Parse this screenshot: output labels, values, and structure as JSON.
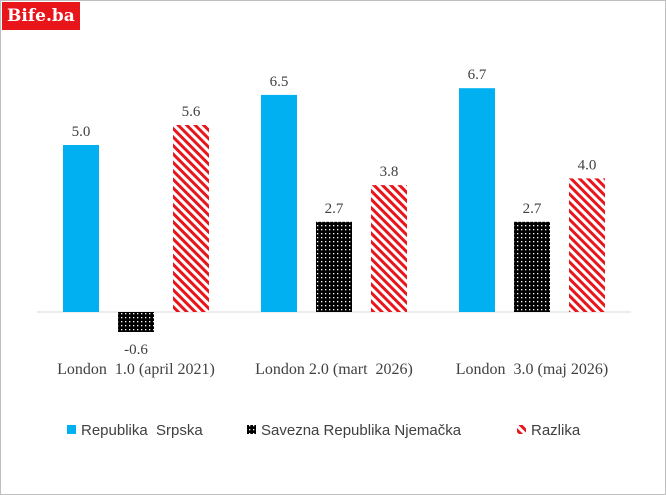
{
  "watermark": "Bife.ba",
  "chart_data": {
    "type": "bar",
    "title": "",
    "xlabel": "",
    "ylabel": "",
    "categories": [
      "London  1.0 (april 2021)",
      "London 2.0 (mart  2026)",
      "London  3.0 (maj 2026)"
    ],
    "series": [
      {
        "name": "Republika  Srpska",
        "values": [
          5.0,
          6.5,
          6.7
        ],
        "labels": [
          "5.0",
          "6.5",
          "6.7"
        ],
        "color": "#00b0f0",
        "pattern": "solid"
      },
      {
        "name": "Savezna Republika Njemačka",
        "values": [
          -0.6,
          2.7,
          2.7
        ],
        "labels": [
          "-0.6",
          "2.7",
          "2.7"
        ],
        "color": "#000000",
        "pattern": "dots"
      },
      {
        "name": "Razlika",
        "values": [
          5.6,
          3.8,
          4.0
        ],
        "labels": [
          "5.6",
          "3.8",
          "4.0"
        ],
        "color": "#e8151b",
        "pattern": "stripes"
      }
    ],
    "ylim": [
      -0.6,
      7.6
    ],
    "grid": false,
    "legend_position": "bottom"
  }
}
